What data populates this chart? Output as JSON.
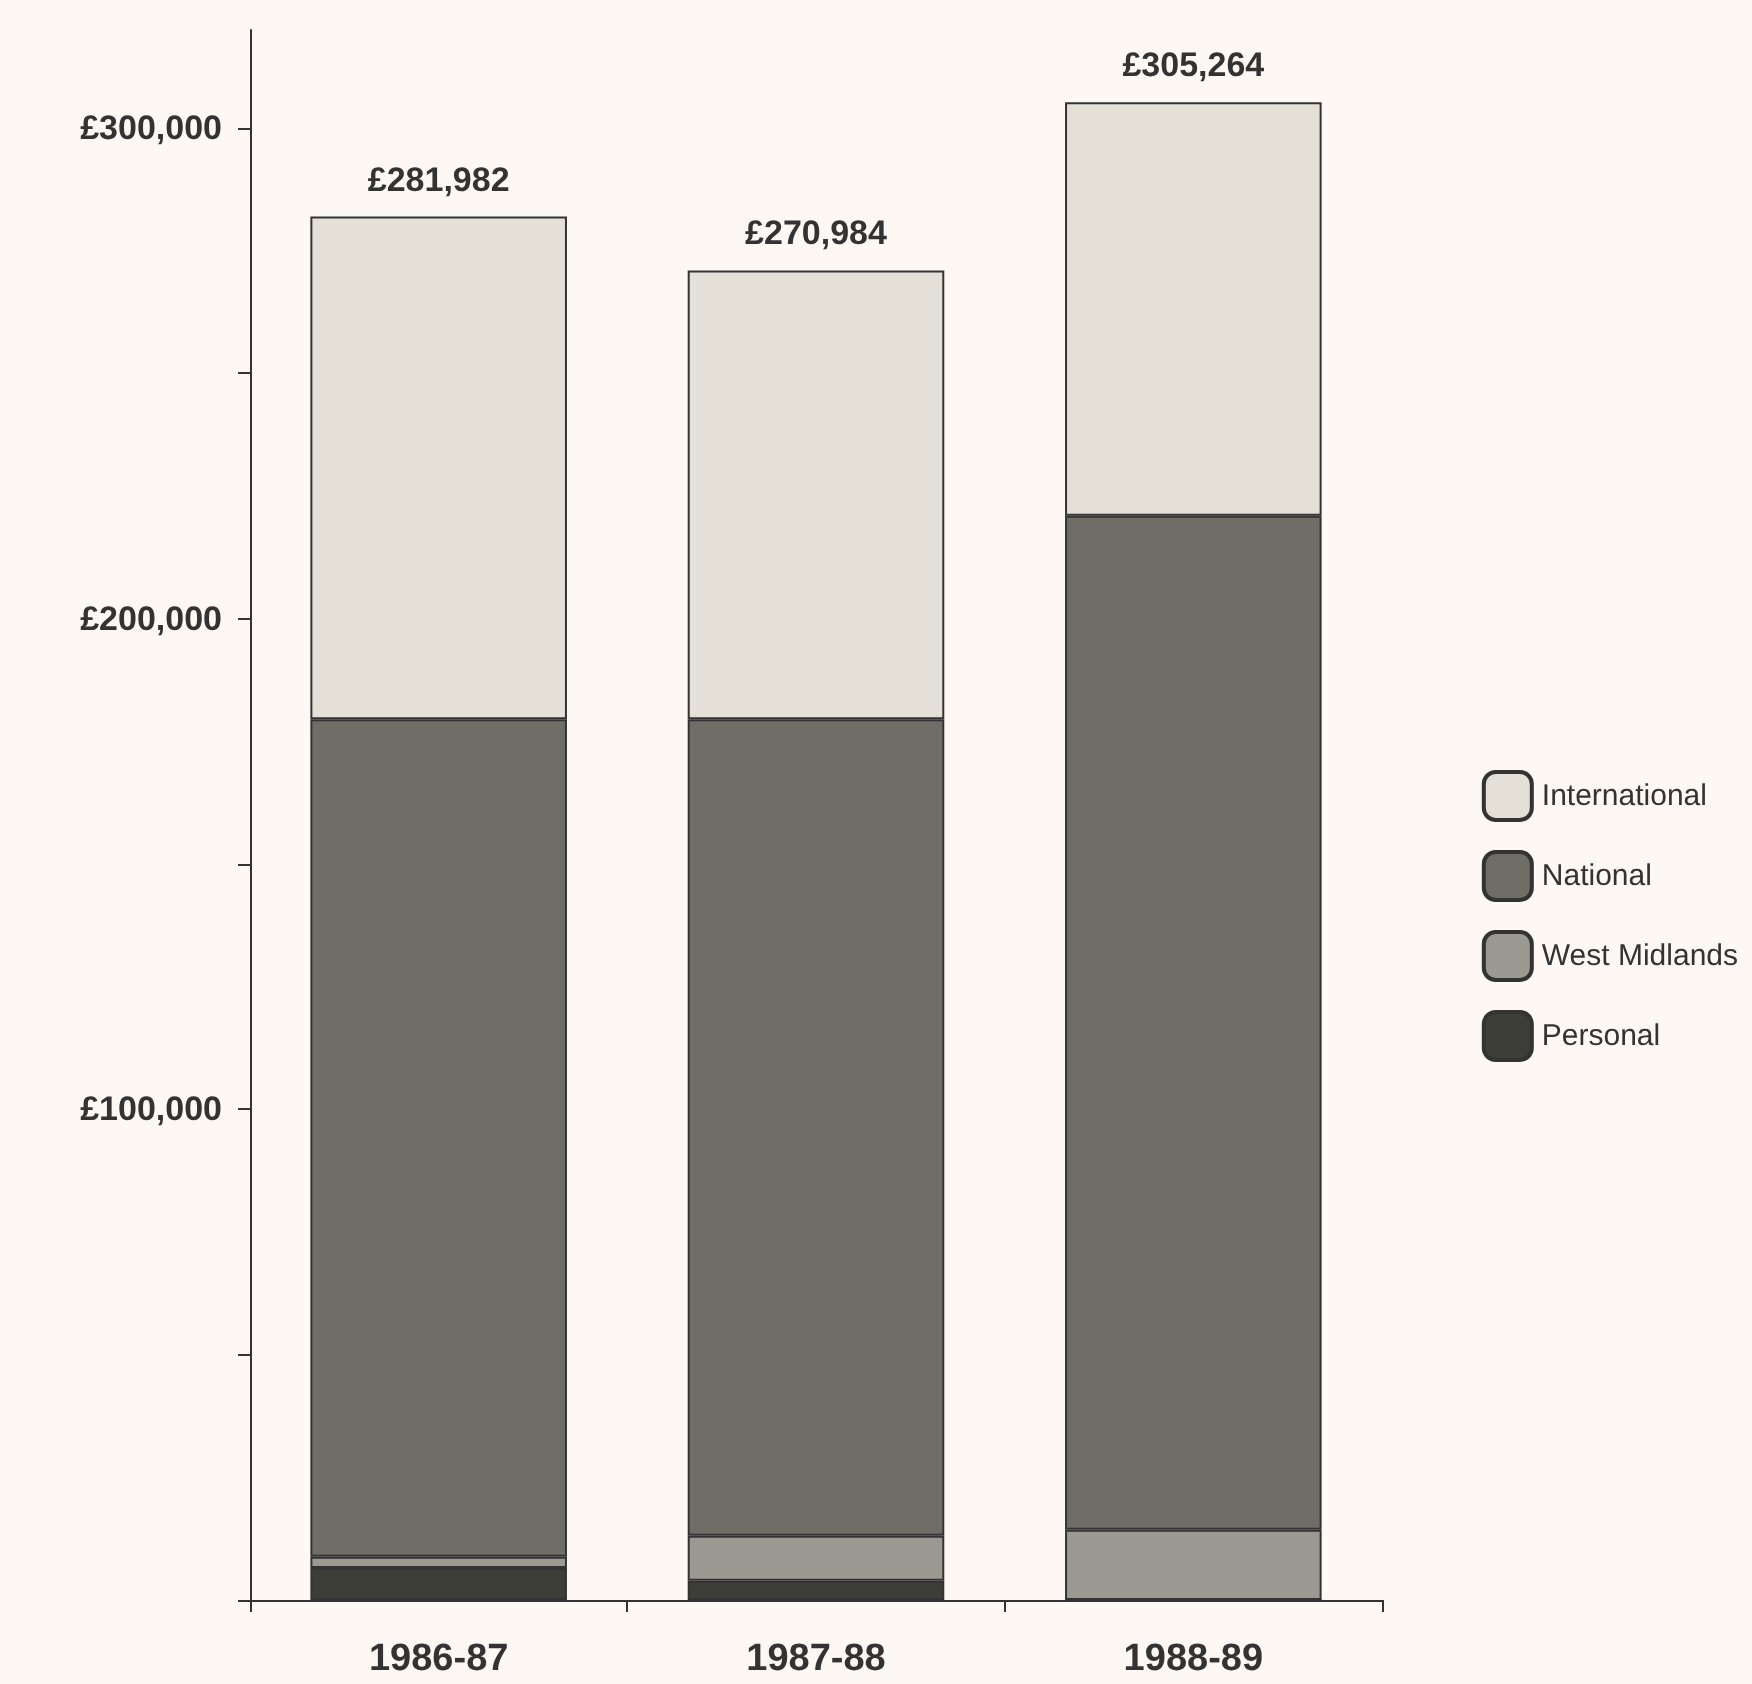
{
  "chart_data": {
    "type": "bar",
    "stacked": true,
    "categories": [
      "1986-87",
      "1987-88",
      "1988-89"
    ],
    "series": [
      {
        "name": "Personal",
        "color": "#3e3e38",
        "values": [
          6500,
          3900,
          0
        ]
      },
      {
        "name": "West Midlands",
        "color": "#9a9a92",
        "values": [
          2300,
          9200,
          14300
        ]
      },
      {
        "name": "National",
        "color": "#6e6e66",
        "values": [
          170700,
          166400,
          206700
        ]
      },
      {
        "name": "International",
        "color": "#e4e0d8",
        "values": [
          102482,
          91484,
          84264
        ]
      }
    ],
    "totals": [
      "£281,982",
      "£270,984",
      "£305,264"
    ],
    "ylim": [
      0,
      320000
    ],
    "yticks": [
      {
        "value": 0,
        "label": null
      },
      {
        "value": 50000,
        "label": null
      },
      {
        "value": 100000,
        "label": "£100,000"
      },
      {
        "value": 150000,
        "label": null
      },
      {
        "value": 200000,
        "label": "£200,000"
      },
      {
        "value": 250000,
        "label": null
      },
      {
        "value": 300000,
        "label": "£300,000"
      }
    ],
    "grid": false,
    "legend": "right"
  }
}
